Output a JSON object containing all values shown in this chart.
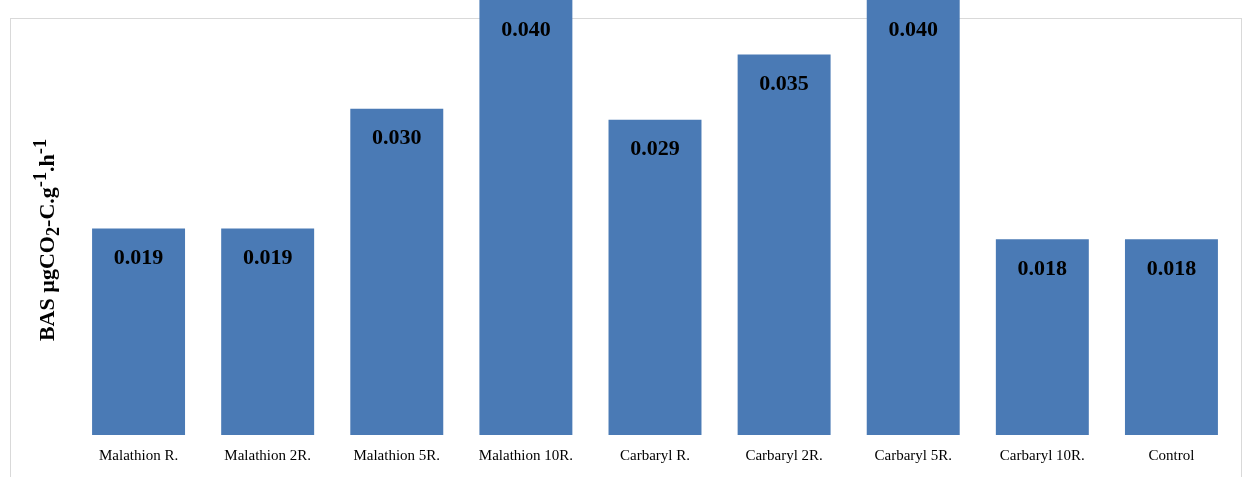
{
  "chart_data": {
    "type": "bar",
    "ylabel": "BAS µgCO$_{2}$-C.g$^{-1}$.h$^{-1}$",
    "categories": [
      "Malathion R.",
      "Malathion 2R.",
      "Malathion 5R.",
      "Malathion 10R.",
      "Carbaryl R.",
      "Carbaryl 2R.",
      "Carbaryl 5R.",
      "Carbaryl 10R.",
      "Control"
    ],
    "values": [
      0.019,
      0.019,
      0.03,
      0.04,
      0.029,
      0.035,
      0.04,
      0.018,
      0.018
    ],
    "value_labels": [
      "0.019",
      "0.019",
      "0.030",
      "0.040",
      "0.029",
      "0.035",
      "0.040",
      "0.018",
      "0.018"
    ],
    "color": "#4a7ab5",
    "grid": false,
    "legend": false
  }
}
